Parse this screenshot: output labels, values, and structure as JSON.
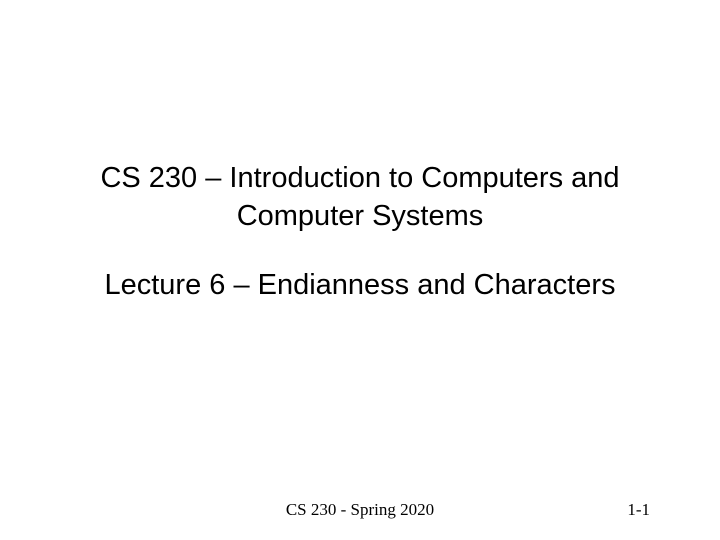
{
  "slide": {
    "course_title_line1": "CS 230 – Introduction to Computers and",
    "course_title_line2": "Computer Systems",
    "lecture_title": "Lecture 6 – Endianness and Characters",
    "footer_center": "CS 230 - Spring 2020",
    "footer_right": "1-1",
    "background_color": "#ffffff",
    "text_color": "#000000",
    "title_fontsize": 29,
    "footer_fontsize": 17
  }
}
